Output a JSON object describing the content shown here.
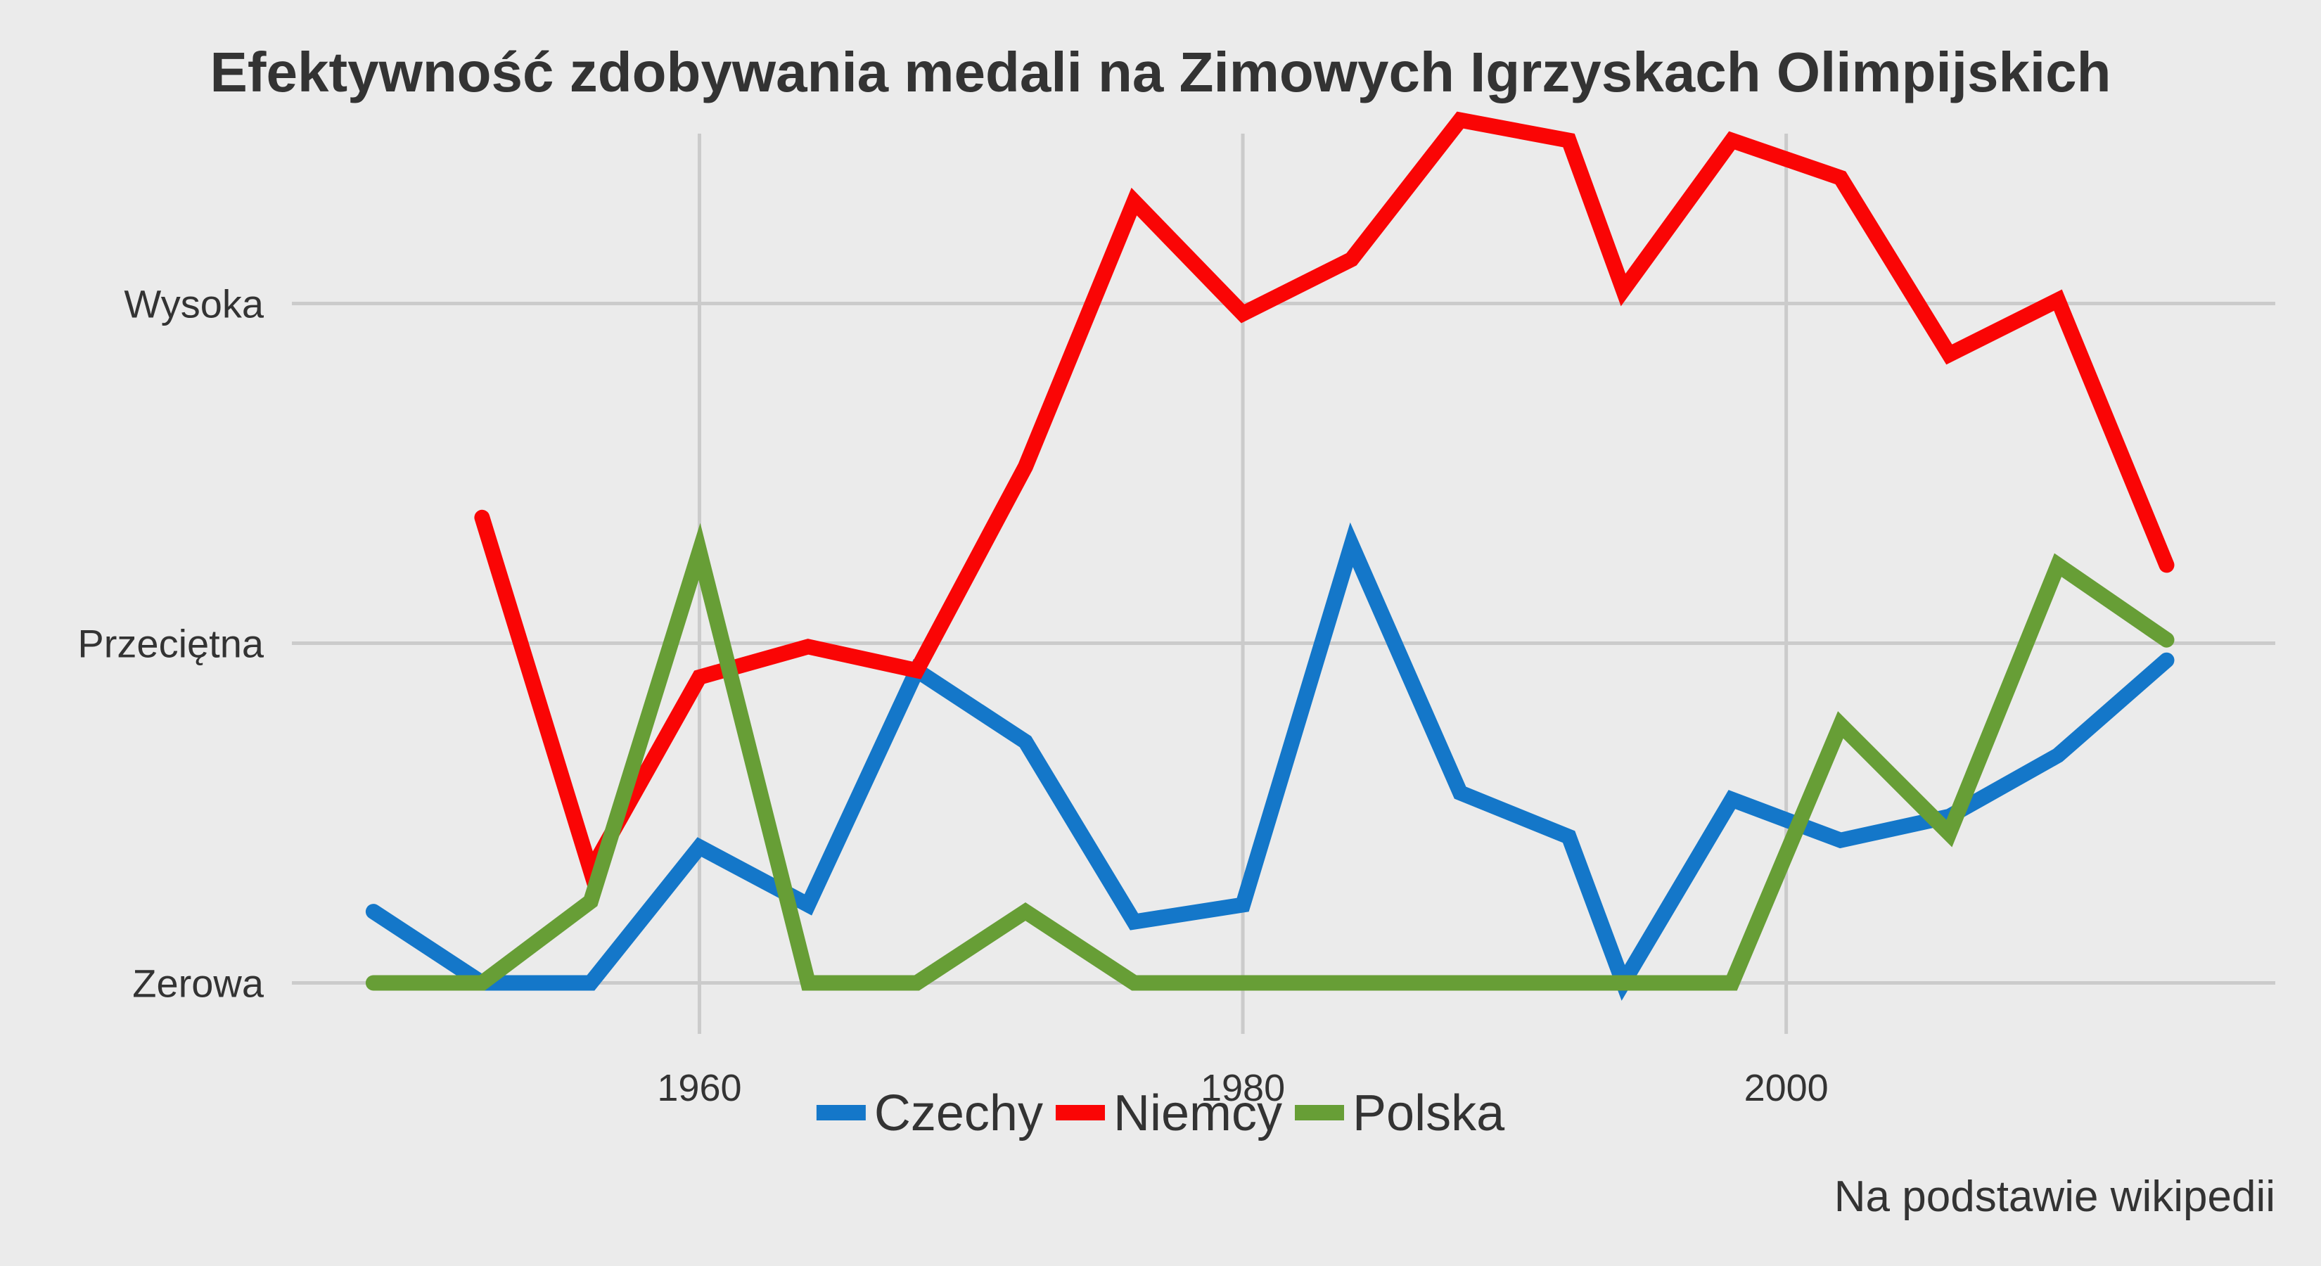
{
  "chart_data": {
    "type": "line",
    "title": "Efektywność zdobywania medali na Zimowych Igrzyskach Olimpijskich",
    "caption": "Na podstawie wikipedii",
    "xlabel": "",
    "ylabel": "",
    "xlim": [
      1945,
      2018
    ],
    "ylim": [
      -0.15,
      2.5
    ],
    "x_ticks": [
      1960,
      1980,
      2000
    ],
    "y_ticks": [
      {
        "value": 0,
        "label": "Zerowa"
      },
      {
        "value": 1,
        "label": "Przeciętna"
      },
      {
        "value": 2,
        "label": "Wysoka"
      }
    ],
    "grid": true,
    "legend_position": "bottom",
    "series": [
      {
        "name": "Czechy",
        "color": "#1477c9",
        "points": [
          [
            1948,
            0.21
          ],
          [
            1952,
            0.0
          ],
          [
            1956,
            0.0
          ],
          [
            1960,
            0.4
          ],
          [
            1964,
            0.23
          ],
          [
            1968,
            0.92
          ],
          [
            1972,
            0.71
          ],
          [
            1976,
            0.18
          ],
          [
            1980,
            0.23
          ],
          [
            1984,
            1.29
          ],
          [
            1988,
            0.56
          ],
          [
            1992,
            0.43
          ],
          [
            1994,
            0.0
          ],
          [
            1998,
            0.54
          ],
          [
            2002,
            0.42
          ],
          [
            2006,
            0.49
          ],
          [
            2010,
            0.67
          ],
          [
            2014,
            0.95
          ]
        ]
      },
      {
        "name": "Niemcy",
        "color": "#fa0505",
        "points": [
          [
            1952,
            1.37
          ],
          [
            1956,
            0.33
          ],
          [
            1960,
            0.9
          ],
          [
            1964,
            0.99
          ],
          [
            1968,
            0.92
          ],
          [
            1972,
            1.52
          ],
          [
            1976,
            2.3
          ],
          [
            1980,
            1.97
          ],
          [
            1984,
            2.13
          ],
          [
            1988,
            2.54
          ],
          [
            1992,
            2.48
          ],
          [
            1994,
            2.04
          ],
          [
            1998,
            2.48
          ],
          [
            2002,
            2.37
          ],
          [
            2006,
            1.85
          ],
          [
            2010,
            2.01
          ],
          [
            2014,
            1.23
          ]
        ]
      },
      {
        "name": "Polska",
        "color": "#679e36",
        "points": [
          [
            1948,
            0.0
          ],
          [
            1952,
            0.0
          ],
          [
            1956,
            0.24
          ],
          [
            1960,
            1.27
          ],
          [
            1964,
            0.0
          ],
          [
            1968,
            0.0
          ],
          [
            1972,
            0.21
          ],
          [
            1976,
            0.0
          ],
          [
            1980,
            0.0
          ],
          [
            1984,
            0.0
          ],
          [
            1988,
            0.0
          ],
          [
            1992,
            0.0
          ],
          [
            1994,
            0.0
          ],
          [
            1998,
            0.0
          ],
          [
            2002,
            0.76
          ],
          [
            2006,
            0.44
          ],
          [
            2010,
            1.23
          ],
          [
            2014,
            1.01
          ]
        ]
      }
    ]
  }
}
